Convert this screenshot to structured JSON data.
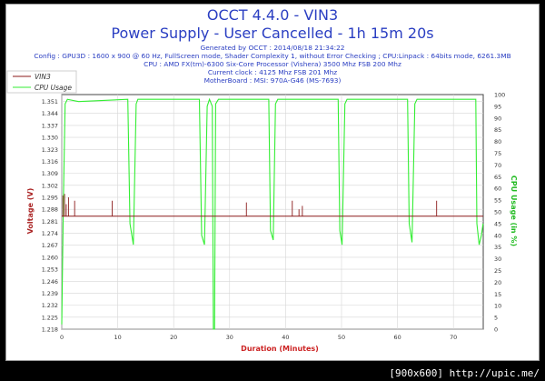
{
  "header": {
    "title": "OCCT 4.4.0 - VIN3",
    "subtitle": "Power Supply - User Cancelled - 1h 15m 20s",
    "generated": "Generated by OCCT : 2014/08/18 21:34:22",
    "config": "Config : GPU3D : 1600 x 900 @ 60 Hz, FullScreen mode, Shader Complexity 1, without Error Checking ; CPU:Linpack : 64bits mode, 6261.3MB",
    "cpu": "CPU : AMD FX(tm)-6300 Six-Core Processor (Vishera) 3500 Mhz FSB 200 Mhz",
    "clock": "Current clock : 4125 Mhz FSB 201 Mhz",
    "motherboard": "MotherBoard : MSI: 970A-G46 (MS-7693)"
  },
  "footer": {
    "text": "[900x600] http://upic.me/"
  },
  "colors": {
    "vin3": "#8b1a1a",
    "cpu": "#33ee33",
    "title": "#2a3ec2",
    "ylabel_right": "#22bb22"
  },
  "chart_data": {
    "type": "line",
    "xlabel": "Duration (Minutes)",
    "ylabel": "Voltage (V)",
    "ylabel_right": "CPU Usage (in %)",
    "xlim": [
      0,
      75.33
    ],
    "ylim": [
      1.218,
      1.355
    ],
    "ylim_right": [
      0,
      100
    ],
    "x_ticks": [
      0,
      10,
      20,
      30,
      40,
      50,
      60,
      70
    ],
    "y_ticks": [
      "1.218",
      "1.225",
      "1.232",
      "1.239",
      "1.246",
      "1.253",
      "1.260",
      "1.267",
      "1.274",
      "1.281",
      "1.288",
      "1.295",
      "1.302",
      "1.309",
      "1.316",
      "1.323",
      "1.330",
      "1.337",
      "1.344",
      "1.351"
    ],
    "y_ticks_right": [
      0,
      5,
      10,
      15,
      20,
      25,
      30,
      35,
      40,
      45,
      50,
      55,
      60,
      65,
      70,
      75,
      80,
      85,
      90,
      95,
      100
    ],
    "grid": true,
    "legend": "top-left",
    "series": [
      {
        "name": "VIN3",
        "axis": "left",
        "baseline": 1.284,
        "spikes": [
          {
            "x": 0.2,
            "y": 1.296
          },
          {
            "x": 0.5,
            "y": 1.297
          },
          {
            "x": 0.8,
            "y": 1.291
          },
          {
            "x": 1.2,
            "y": 1.295
          },
          {
            "x": 2.3,
            "y": 1.293
          },
          {
            "x": 9.0,
            "y": 1.293
          },
          {
            "x": 33.0,
            "y": 1.292
          },
          {
            "x": 41.2,
            "y": 1.293
          },
          {
            "x": 42.4,
            "y": 1.288
          },
          {
            "x": 43.0,
            "y": 1.29
          },
          {
            "x": 67.0,
            "y": 1.293
          }
        ]
      },
      {
        "name": "CPU Usage",
        "axis": "right",
        "baseline": 98,
        "points": [
          [
            0,
            2
          ],
          [
            0.3,
            55
          ],
          [
            0.6,
            96
          ],
          [
            1.0,
            98
          ],
          [
            3.0,
            97
          ],
          [
            11.8,
            98
          ],
          [
            12.2,
            45
          ],
          [
            12.8,
            36
          ],
          [
            13.3,
            96
          ],
          [
            13.6,
            98
          ],
          [
            24.6,
            98
          ],
          [
            25.0,
            40
          ],
          [
            25.5,
            36
          ],
          [
            26.0,
            95
          ],
          [
            26.4,
            98
          ],
          [
            26.9,
            95
          ],
          [
            27.1,
            0
          ],
          [
            27.3,
            0
          ],
          [
            27.5,
            96
          ],
          [
            28.0,
            98
          ],
          [
            37.0,
            98
          ],
          [
            37.3,
            42
          ],
          [
            37.8,
            38
          ],
          [
            38.2,
            96
          ],
          [
            38.6,
            98
          ],
          [
            49.4,
            98
          ],
          [
            49.7,
            42
          ],
          [
            50.1,
            36
          ],
          [
            50.6,
            96
          ],
          [
            51.0,
            98
          ],
          [
            61.8,
            98
          ],
          [
            62.1,
            45
          ],
          [
            62.6,
            37
          ],
          [
            63.1,
            96
          ],
          [
            63.5,
            98
          ],
          [
            74.0,
            98
          ],
          [
            74.2,
            45
          ],
          [
            74.6,
            36
          ],
          [
            75.0,
            40
          ],
          [
            75.3,
            45
          ]
        ]
      }
    ]
  }
}
